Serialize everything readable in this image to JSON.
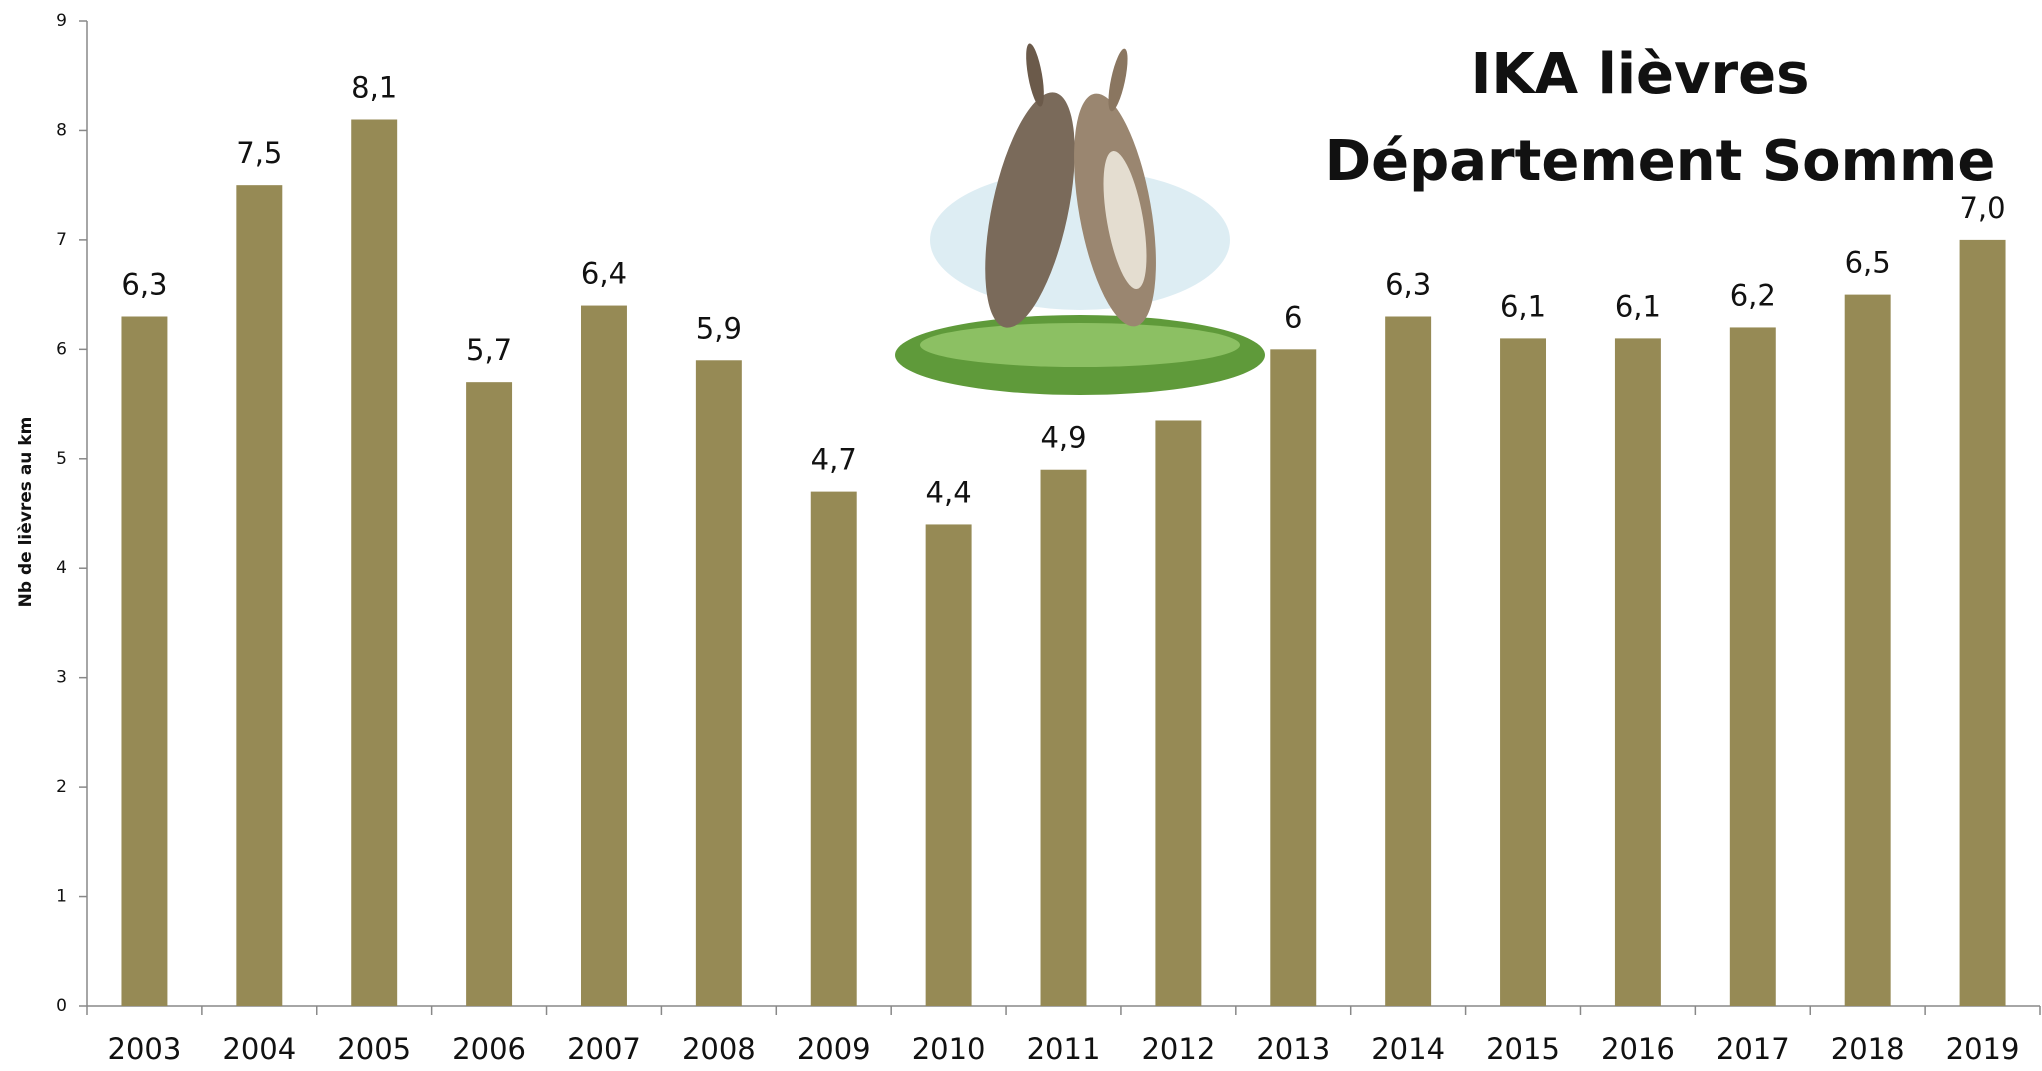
{
  "chart_data": {
    "type": "bar",
    "title": "IKA lièvres",
    "subtitle": "Département Somme",
    "y_label": "Nb de lièvres au km",
    "categories": [
      "2003",
      "2004",
      "2005",
      "2006",
      "2007",
      "2008",
      "2009",
      "2010",
      "2011",
      "2012",
      "2013",
      "2014",
      "2015",
      "2016",
      "2017",
      "2018",
      "2019"
    ],
    "values": [
      6.3,
      7.5,
      8.1,
      5.7,
      6.4,
      5.9,
      4.7,
      4.4,
      4.9,
      5.35,
      6,
      6.3,
      6.1,
      6.1,
      6.2,
      6.5,
      7.0
    ],
    "value_labels": [
      "6,3",
      "7,5",
      "8,1",
      "5,7",
      "6,4",
      "5,9",
      "4,7",
      "4,4",
      "4,9",
      null,
      "6",
      "6,3",
      "6,1",
      "6,1",
      "6,2",
      "6,5",
      "7,0"
    ],
    "color": "#968a55",
    "ylim": [
      0,
      9
    ],
    "yticks": [
      0,
      1,
      2,
      3,
      4,
      5,
      6,
      7,
      8,
      9
    ],
    "grid": false
  }
}
